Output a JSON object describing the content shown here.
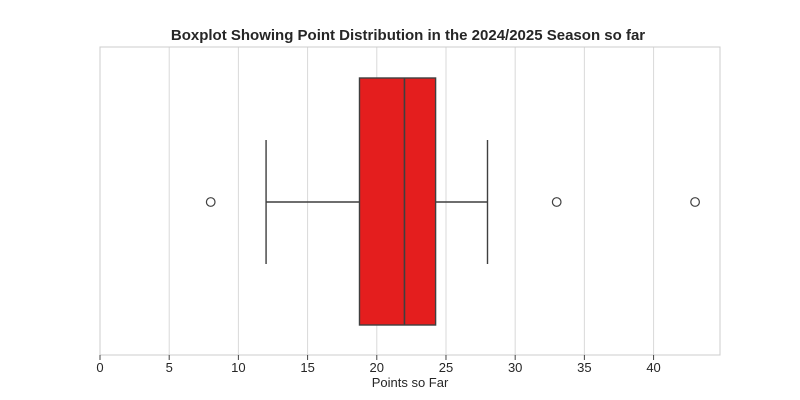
{
  "chart_data": {
    "type": "boxplot",
    "title": "Boxplot Showing Point Distribution in the 2024/2025 Season so far",
    "xlabel": "Points so Far",
    "ylabel": "",
    "xlim": [
      0,
      44.8
    ],
    "xticks": [
      0,
      5,
      10,
      15,
      20,
      25,
      30,
      35,
      40
    ],
    "tick_labels": [
      "0",
      "5",
      "10",
      "15",
      "20",
      "25",
      "30",
      "35",
      "40"
    ],
    "grid": true,
    "box": {
      "whisker_low": 12,
      "q1": 18.75,
      "median": 22,
      "q3": 24.25,
      "whisker_high": 28,
      "outliers": [
        8,
        33,
        43
      ]
    },
    "colors": {
      "box_fill": "#e41e1e",
      "line": "#3f3f3f",
      "grid": "#d9d9d9",
      "frame": "#cccccc"
    }
  }
}
